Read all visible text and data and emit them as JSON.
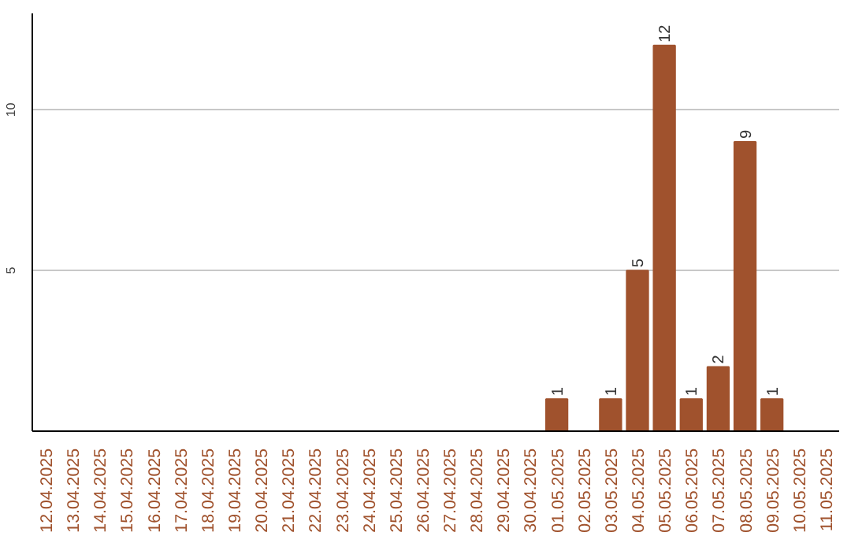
{
  "chart_data": {
    "type": "bar",
    "categories": [
      "12.04.2025",
      "13.04.2025",
      "14.04.2025",
      "15.04.2025",
      "16.04.2025",
      "17.04.2025",
      "18.04.2025",
      "19.04.2025",
      "20.04.2025",
      "21.04.2025",
      "22.04.2025",
      "23.04.2025",
      "24.04.2025",
      "25.04.2025",
      "26.04.2025",
      "27.04.2025",
      "28.04.2025",
      "29.04.2025",
      "30.04.2025",
      "01.05.2025",
      "02.05.2025",
      "03.05.2025",
      "04.05.2025",
      "05.05.2025",
      "06.05.2025",
      "07.05.2025",
      "08.05.2025",
      "09.05.2025",
      "10.05.2025",
      "11.05.2025"
    ],
    "values": [
      null,
      null,
      null,
      null,
      null,
      null,
      null,
      null,
      null,
      null,
      null,
      null,
      null,
      null,
      null,
      null,
      null,
      null,
      null,
      1,
      null,
      1,
      5,
      12,
      1,
      2,
      9,
      1,
      null,
      null
    ],
    "color": "#a0522d",
    "ylim": [
      0,
      13
    ],
    "yticks": [
      5,
      10
    ],
    "grid": "y",
    "data_labels": true
  }
}
